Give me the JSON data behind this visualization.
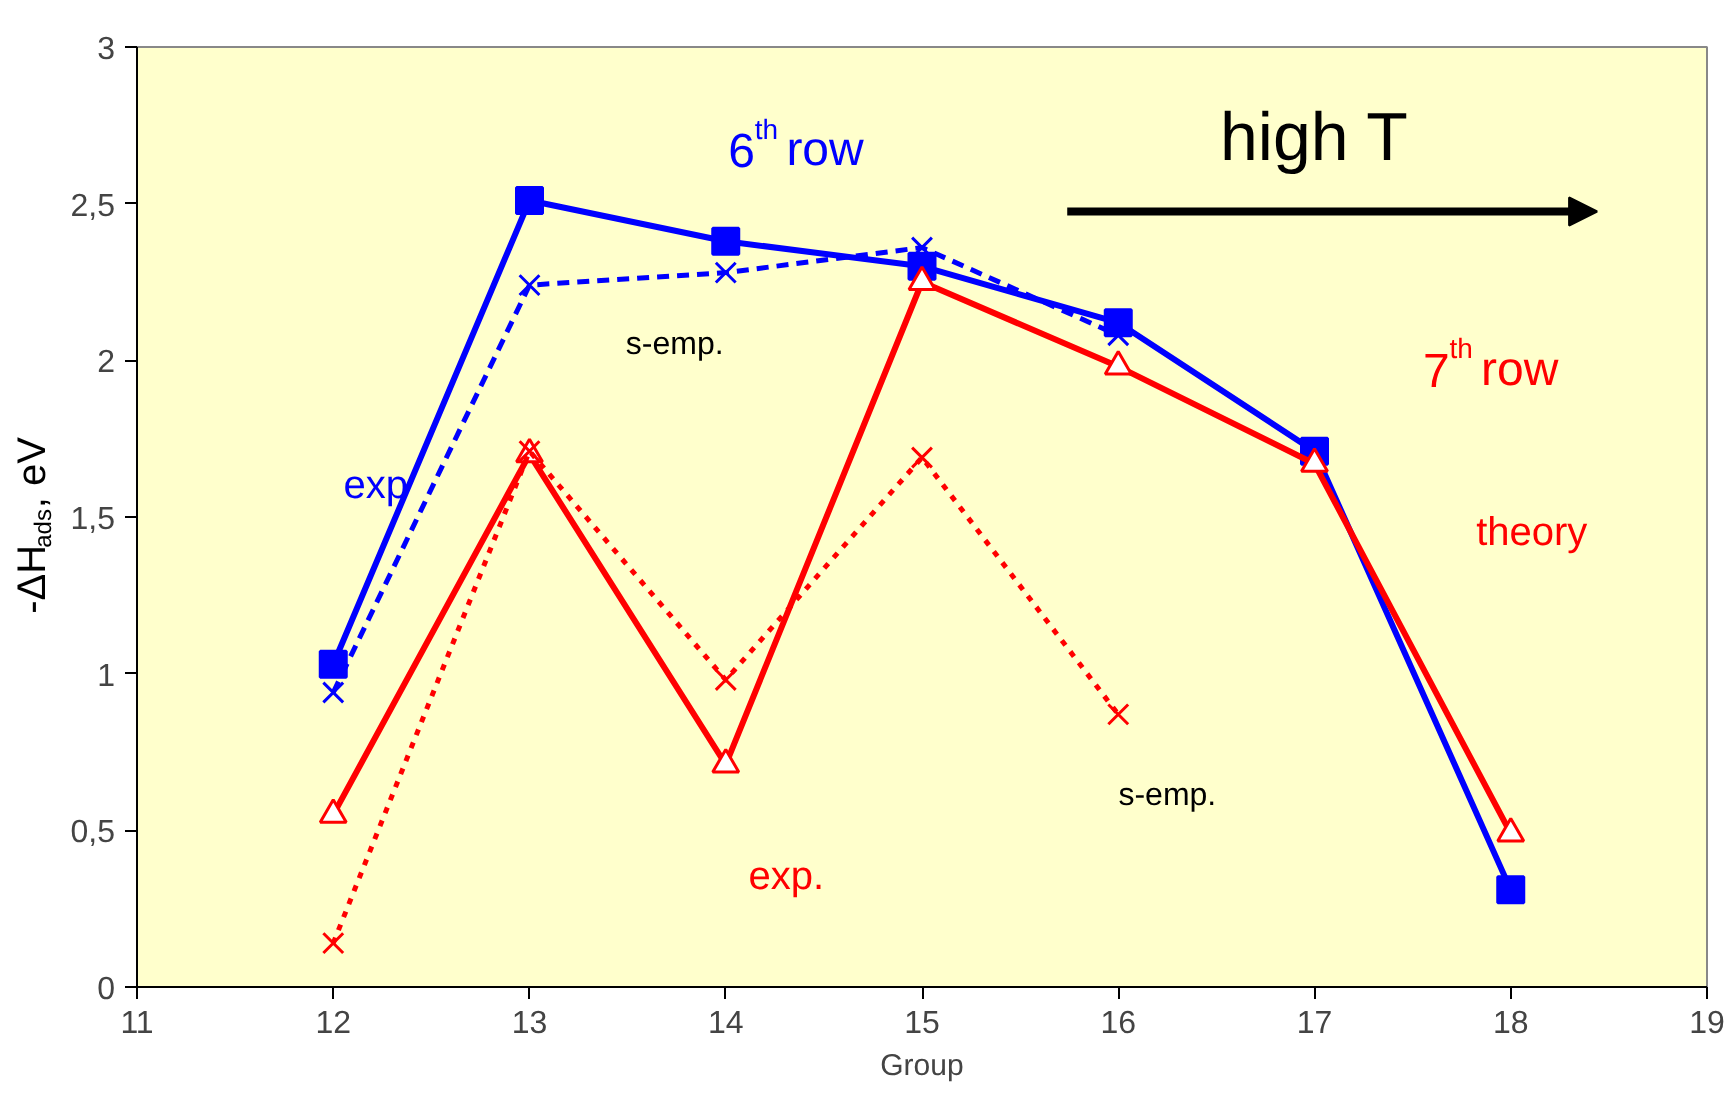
{
  "chart_data": {
    "type": "line",
    "xlabel": "Group",
    "ylabel": "-ΔH$_{ads}$, eV",
    "x": [
      12,
      13,
      14,
      15,
      16,
      17,
      18
    ],
    "xlim": [
      11,
      19
    ],
    "xticks": [
      11,
      12,
      13,
      14,
      15,
      16,
      17,
      18,
      19
    ],
    "ylim": [
      0,
      3
    ],
    "yticks": [
      0,
      {
        "value": 0.5,
        "label": "0,5"
      },
      1,
      {
        "value": 1.5,
        "label": "1,5"
      },
      2,
      {
        "value": 2.5,
        "label": "2,5"
      },
      3
    ],
    "series": [
      {
        "color": "#0000ff",
        "marker": "square",
        "line_style": "solid",
        "values": [
          1.03,
          2.51,
          2.38,
          2.3,
          2.12,
          1.71,
          0.31
        ]
      },
      {
        "color": "#0000ff",
        "marker": "cross",
        "line_style": "dashed",
        "values": [
          0.94,
          2.24,
          2.28,
          2.36,
          2.08,
          null,
          null
        ]
      },
      {
        "color": "#ff0000",
        "marker": "triangle",
        "line_style": "solid",
        "values": [
          0.55,
          1.7,
          0.71,
          2.25,
          1.98,
          1.67,
          0.49
        ]
      },
      {
        "color": "#ff0000",
        "marker": "cross",
        "line_style": "dotted",
        "values": [
          0.14,
          1.71,
          0.98,
          1.69,
          0.87,
          null,
          null
        ]
      }
    ],
    "annotations": [
      "6$^{th}$ row",
      "high T",
      "7$^{th}$ row",
      "exp",
      "s-emp.",
      "theory",
      "exp.",
      "s-emp."
    ]
  }
}
